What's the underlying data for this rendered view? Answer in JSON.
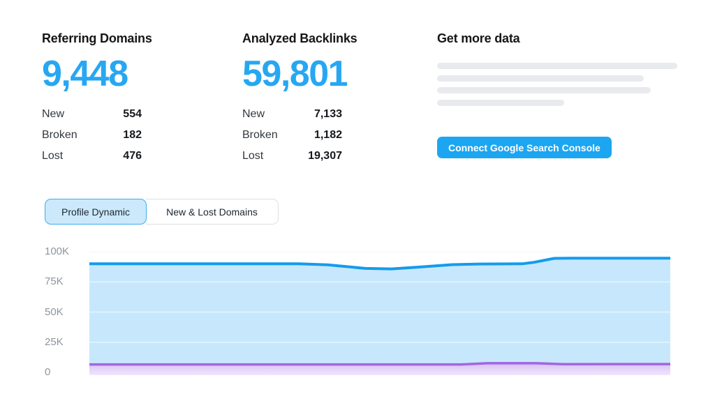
{
  "stats": [
    {
      "title": "Referring Domains",
      "total": "9,448",
      "rows": [
        {
          "label": "New",
          "value": "554"
        },
        {
          "label": "Broken",
          "value": "182"
        },
        {
          "label": "Lost",
          "value": "476"
        }
      ]
    },
    {
      "title": "Analyzed Backlinks",
      "total": "59,801",
      "rows": [
        {
          "label": "New",
          "value": "7,133"
        },
        {
          "label": "Broken",
          "value": "1,182"
        },
        {
          "label": "Lost",
          "value": "19,307"
        }
      ]
    }
  ],
  "promo": {
    "title": "Get more data",
    "button_label": "Connect Google Search Console",
    "skeleton_widths_pct": [
      100,
      86,
      89,
      53
    ]
  },
  "tabs": [
    {
      "label": "Profile Dynamic",
      "active": true
    },
    {
      "label": "New & Lost Domains",
      "active": false
    }
  ],
  "chart_data": {
    "type": "area",
    "title": "",
    "xlabel": "",
    "ylabel": "",
    "ylim_k": [
      0,
      100
    ],
    "yticks": [
      "100K",
      "75K",
      "50K",
      "25K",
      "0"
    ],
    "grid_levels_k": [
      100,
      75,
      50,
      25,
      0
    ],
    "grid": "on",
    "legend": "none",
    "series": [
      {
        "name": "upper-blue-area",
        "points": [
          {
            "x_pct": 0,
            "value_k": 90.0
          },
          {
            "x_pct": 36,
            "value_k": 90.0
          },
          {
            "x_pct": 41,
            "value_k": 89.2
          },
          {
            "x_pct": 47.5,
            "value_k": 86.2
          },
          {
            "x_pct": 52,
            "value_k": 85.8
          },
          {
            "x_pct": 56.5,
            "value_k": 87.2
          },
          {
            "x_pct": 62.5,
            "value_k": 89.3
          },
          {
            "x_pct": 67,
            "value_k": 89.8
          },
          {
            "x_pct": 74.5,
            "value_k": 90.0
          },
          {
            "x_pct": 76.5,
            "value_k": 91.2
          },
          {
            "x_pct": 80,
            "value_k": 94.5
          },
          {
            "x_pct": 83,
            "value_k": 94.7
          },
          {
            "x_pct": 100,
            "value_k": 94.7
          }
        ]
      },
      {
        "name": "lower-purple-area",
        "points": [
          {
            "x_pct": 0,
            "value_k": 6.6
          },
          {
            "x_pct": 64,
            "value_k": 6.6
          },
          {
            "x_pct": 68.5,
            "value_k": 7.6
          },
          {
            "x_pct": 77,
            "value_k": 7.6
          },
          {
            "x_pct": 81.5,
            "value_k": 6.8
          },
          {
            "x_pct": 100,
            "value_k": 6.9
          }
        ]
      }
    ],
    "colors": {
      "line_blue": "#149bed",
      "fill_blue": "#c7e8fc",
      "line_purple": "#a266e2",
      "fill_purple_top": "#d5baf3",
      "fill_purple_bottom": "#f3ebfc",
      "grid": "#e7e9ed",
      "grid_overlay": "rgba(255,255,255,0.55)",
      "axis_text": "#8e959e"
    }
  }
}
